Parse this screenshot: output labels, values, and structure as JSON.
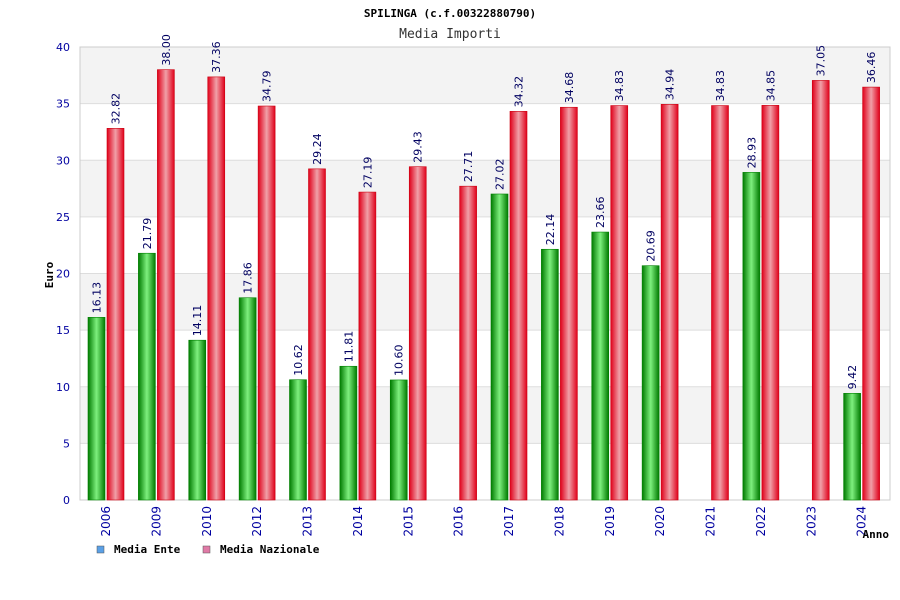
{
  "chart_data": {
    "type": "bar",
    "title": "SPILINGA (c.f.00322880790)",
    "subtitle": "Media Importi",
    "xlabel": "Anno",
    "ylabel": "Euro",
    "ylim": [
      0,
      40
    ],
    "yticks": [
      "0",
      "5",
      "10",
      "15",
      "20",
      "25",
      "30",
      "35",
      "40"
    ],
    "grid": true,
    "legend_position": "bottom-left",
    "categories": [
      "2006",
      "2009",
      "2010",
      "2012",
      "2013",
      "2014",
      "2015",
      "2016",
      "2017",
      "2018",
      "2019",
      "2020",
      "2021",
      "2022",
      "2023",
      "2024"
    ],
    "series": [
      {
        "name": "Media Ente",
        "color": "#00b000",
        "legend_color": "#5aa0e6",
        "values": [
          16.13,
          21.79,
          14.11,
          17.86,
          10.62,
          11.81,
          10.6,
          null,
          27.02,
          22.14,
          23.66,
          20.69,
          null,
          28.93,
          null,
          9.42
        ],
        "labels": [
          "16.13",
          "21.79",
          "14.11",
          "17.86",
          "10.62",
          "11.81",
          "10.60",
          "",
          "27.02",
          "22.14",
          "23.66",
          "20.69",
          "",
          "28.93",
          "",
          "9.42"
        ]
      },
      {
        "name": "Media Nazionale",
        "color": "#ee1111",
        "legend_color": "#e07aa6",
        "values": [
          32.82,
          38.0,
          37.36,
          34.79,
          29.24,
          27.19,
          29.43,
          27.71,
          34.32,
          34.68,
          34.83,
          34.94,
          34.83,
          34.85,
          37.05,
          36.46
        ],
        "labels": [
          "32.82",
          "38.00",
          "37.36",
          "34.79",
          "29.24",
          "27.19",
          "29.43",
          "27.71",
          "34.32",
          "34.68",
          "34.83",
          "34.94",
          "34.83",
          "34.85",
          "37.05",
          "36.46"
        ]
      }
    ]
  }
}
